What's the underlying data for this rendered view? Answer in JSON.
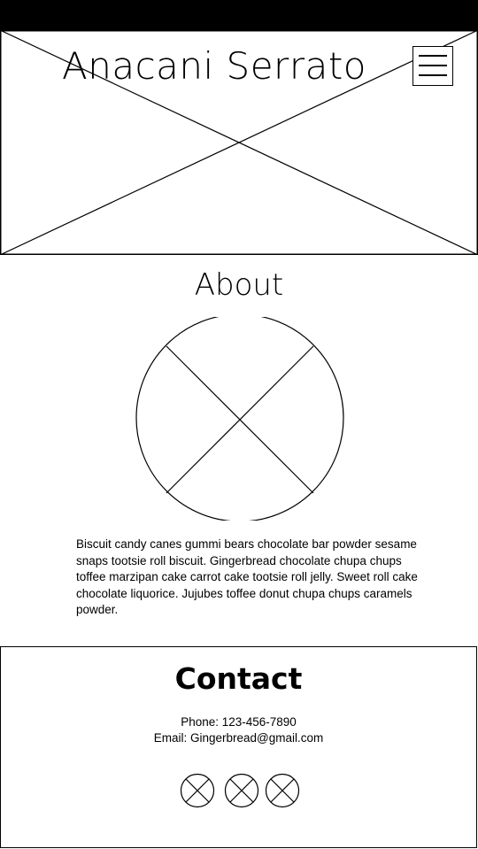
{
  "header": {
    "title": "Anacani Serrato",
    "menu_icon": "hamburger-menu-icon",
    "hero_image": "image-placeholder"
  },
  "about": {
    "title": "About",
    "image": "image-placeholder-circle",
    "body": "Biscuit candy canes gummi bears chocolate bar powder sesame snaps tootsie roll biscuit. Gingerbread chocolate chupa chups toffee marzipan cake carrot cake tootsie roll jelly. Sweet roll cake chocolate liquorice. Jujubes toffee donut chupa chups caramels powder."
  },
  "contact": {
    "title": "Contact",
    "phone": "Phone: 123-456-7890",
    "email": "Email: Gingerbread@gmail.com",
    "social_icons": [
      "social-icon-placeholder",
      "social-icon-placeholder",
      "social-icon-placeholder"
    ]
  }
}
